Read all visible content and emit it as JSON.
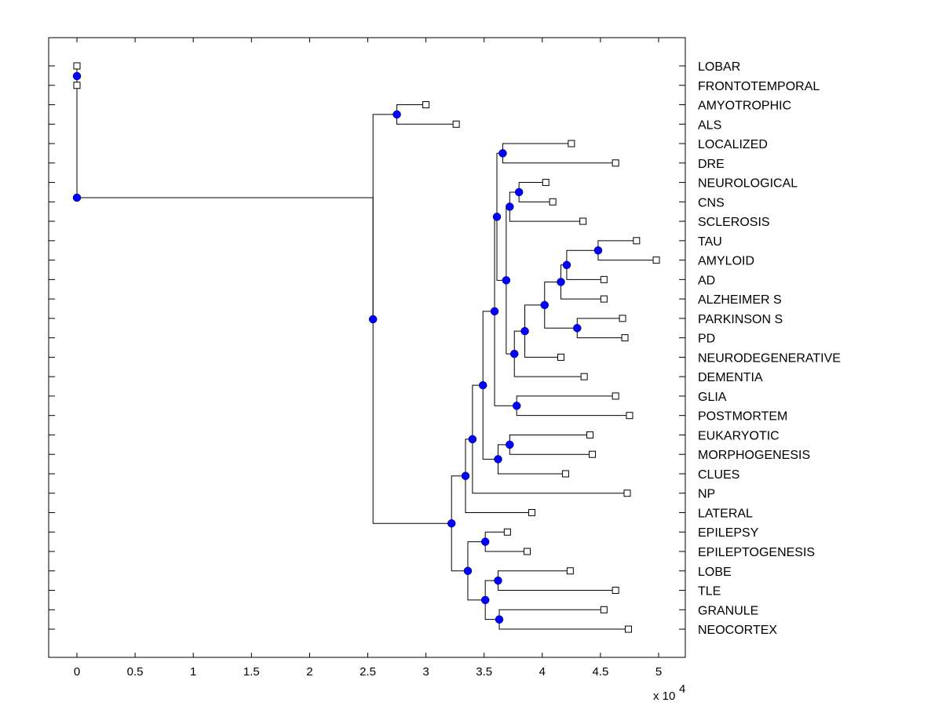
{
  "chart_data": {
    "type": "dendrogram",
    "title": "",
    "xlabel": "",
    "ylabel": "",
    "x_multiplier": "x 10^4",
    "xlim": [
      -0.24,
      5.24
    ],
    "xticks": [
      0,
      0.5,
      1,
      1.5,
      2,
      2.5,
      3,
      3.5,
      4,
      4.5,
      5
    ],
    "xtick_labels": [
      "0",
      "0.5",
      "1",
      "1.5",
      "2",
      "2.5",
      "3",
      "3.5",
      "4",
      "4.5",
      "5"
    ],
    "multiplier_base": "x 10",
    "multiplier_exp": "4",
    "node_color": "#0000ff",
    "leaf_color": "#ffffff",
    "leaves": [
      {
        "label": "LOBAR",
        "x": 0.0
      },
      {
        "label": "FRONTOTEMPORAL",
        "x": 0.0
      },
      {
        "label": "AMYOTROPHIC",
        "x": 3.0
      },
      {
        "label": "ALS",
        "x": 3.26
      },
      {
        "label": "LOCALIZED",
        "x": 4.25
      },
      {
        "label": "DRE",
        "x": 4.63
      },
      {
        "label": "NEUROLOGICAL",
        "x": 4.03
      },
      {
        "label": "CNS",
        "x": 4.09
      },
      {
        "label": "SCLEROSIS",
        "x": 4.35
      },
      {
        "label": "TAU",
        "x": 4.81
      },
      {
        "label": "AMYLOID",
        "x": 4.98
      },
      {
        "label": "AD",
        "x": 4.53
      },
      {
        "label": "ALZHEIMER S",
        "x": 4.53
      },
      {
        "label": "PARKINSON S",
        "x": 4.69
      },
      {
        "label": "PD",
        "x": 4.71
      },
      {
        "label": "NEURODEGENERATIVE",
        "x": 4.16
      },
      {
        "label": "DEMENTIA",
        "x": 4.36
      },
      {
        "label": "GLIA",
        "x": 4.63
      },
      {
        "label": "POSTMORTEM",
        "x": 4.75
      },
      {
        "label": "EUKARYOTIC",
        "x": 4.41
      },
      {
        "label": "MORPHOGENESIS",
        "x": 4.43
      },
      {
        "label": "CLUES",
        "x": 4.2
      },
      {
        "label": "NP",
        "x": 4.73
      },
      {
        "label": "LATERAL",
        "x": 3.91
      },
      {
        "label": "EPILEPSY",
        "x": 3.7
      },
      {
        "label": "EPILEPTOGENESIS",
        "x": 3.87
      },
      {
        "label": "LOBE",
        "x": 4.24
      },
      {
        "label": "TLE",
        "x": 4.63
      },
      {
        "label": "GRANULE",
        "x": 4.53
      },
      {
        "label": "NEOCORTEX",
        "x": 4.74
      }
    ],
    "nodes": [
      {
        "id": "n_lf",
        "x": 0.0,
        "children": [
          "L0",
          "L1"
        ]
      },
      {
        "id": "n_left",
        "x": 0.0,
        "children": [
          "n_lf"
        ]
      },
      {
        "id": "n_als",
        "x": 2.75,
        "children": [
          "L2",
          "L3"
        ]
      },
      {
        "id": "n_dre",
        "x": 3.66,
        "children": [
          "L4",
          "L5"
        ]
      },
      {
        "id": "n_cns",
        "x": 3.8,
        "children": [
          "L6",
          "L7"
        ]
      },
      {
        "id": "n_scl",
        "x": 3.72,
        "children": [
          "n_cns",
          "L8"
        ]
      },
      {
        "id": "n_tau",
        "x": 4.48,
        "children": [
          "L9",
          "L10"
        ]
      },
      {
        "id": "n_ad",
        "x": 4.21,
        "children": [
          "n_tau",
          "L11"
        ]
      },
      {
        "id": "n_alz",
        "x": 4.16,
        "children": [
          "n_ad",
          "L12"
        ]
      },
      {
        "id": "n_pd",
        "x": 4.3,
        "children": [
          "L13",
          "L14"
        ]
      },
      {
        "id": "n_ap",
        "x": 4.02,
        "children": [
          "n_alz",
          "n_pd"
        ]
      },
      {
        "id": "n_ndg",
        "x": 3.85,
        "children": [
          "n_ap",
          "L15"
        ]
      },
      {
        "id": "n_dem",
        "x": 3.76,
        "children": [
          "n_ndg",
          "L16"
        ]
      },
      {
        "id": "n_mid",
        "x": 3.69,
        "children": [
          "n_scl",
          "n_dem"
        ]
      },
      {
        "id": "n_top",
        "x": 3.61,
        "children": [
          "n_dre",
          "n_mid"
        ]
      },
      {
        "id": "n_glia",
        "x": 3.78,
        "children": [
          "L17",
          "L18"
        ]
      },
      {
        "id": "n_cog",
        "x": 3.59,
        "children": [
          "n_top",
          "n_glia"
        ]
      },
      {
        "id": "n_euk",
        "x": 3.72,
        "children": [
          "L19",
          "L20"
        ]
      },
      {
        "id": "n_clu",
        "x": 3.62,
        "children": [
          "n_euk",
          "L21"
        ]
      },
      {
        "id": "n_big",
        "x": 3.49,
        "children": [
          "n_cog",
          "n_clu"
        ]
      },
      {
        "id": "n_np",
        "x": 3.4,
        "children": [
          "n_big",
          "L22"
        ]
      },
      {
        "id": "n_lat",
        "x": 3.34,
        "children": [
          "n_np",
          "L23"
        ]
      },
      {
        "id": "n_epi",
        "x": 3.51,
        "children": [
          "L24",
          "L25"
        ]
      },
      {
        "id": "n_tle",
        "x": 3.62,
        "children": [
          "L26",
          "L27"
        ]
      },
      {
        "id": "n_neo",
        "x": 3.63,
        "children": [
          "L28",
          "L29"
        ]
      },
      {
        "id": "n_tn",
        "x": 3.51,
        "children": [
          "n_tle",
          "n_neo"
        ]
      },
      {
        "id": "n_ep",
        "x": 3.36,
        "children": [
          "n_epi",
          "n_tn"
        ]
      },
      {
        "id": "n_b",
        "x": 3.22,
        "children": [
          "n_lat",
          "n_ep"
        ]
      },
      {
        "id": "n_root",
        "x": 2.545,
        "children": [
          "n_left",
          "n_als",
          "n_b"
        ]
      }
    ]
  }
}
